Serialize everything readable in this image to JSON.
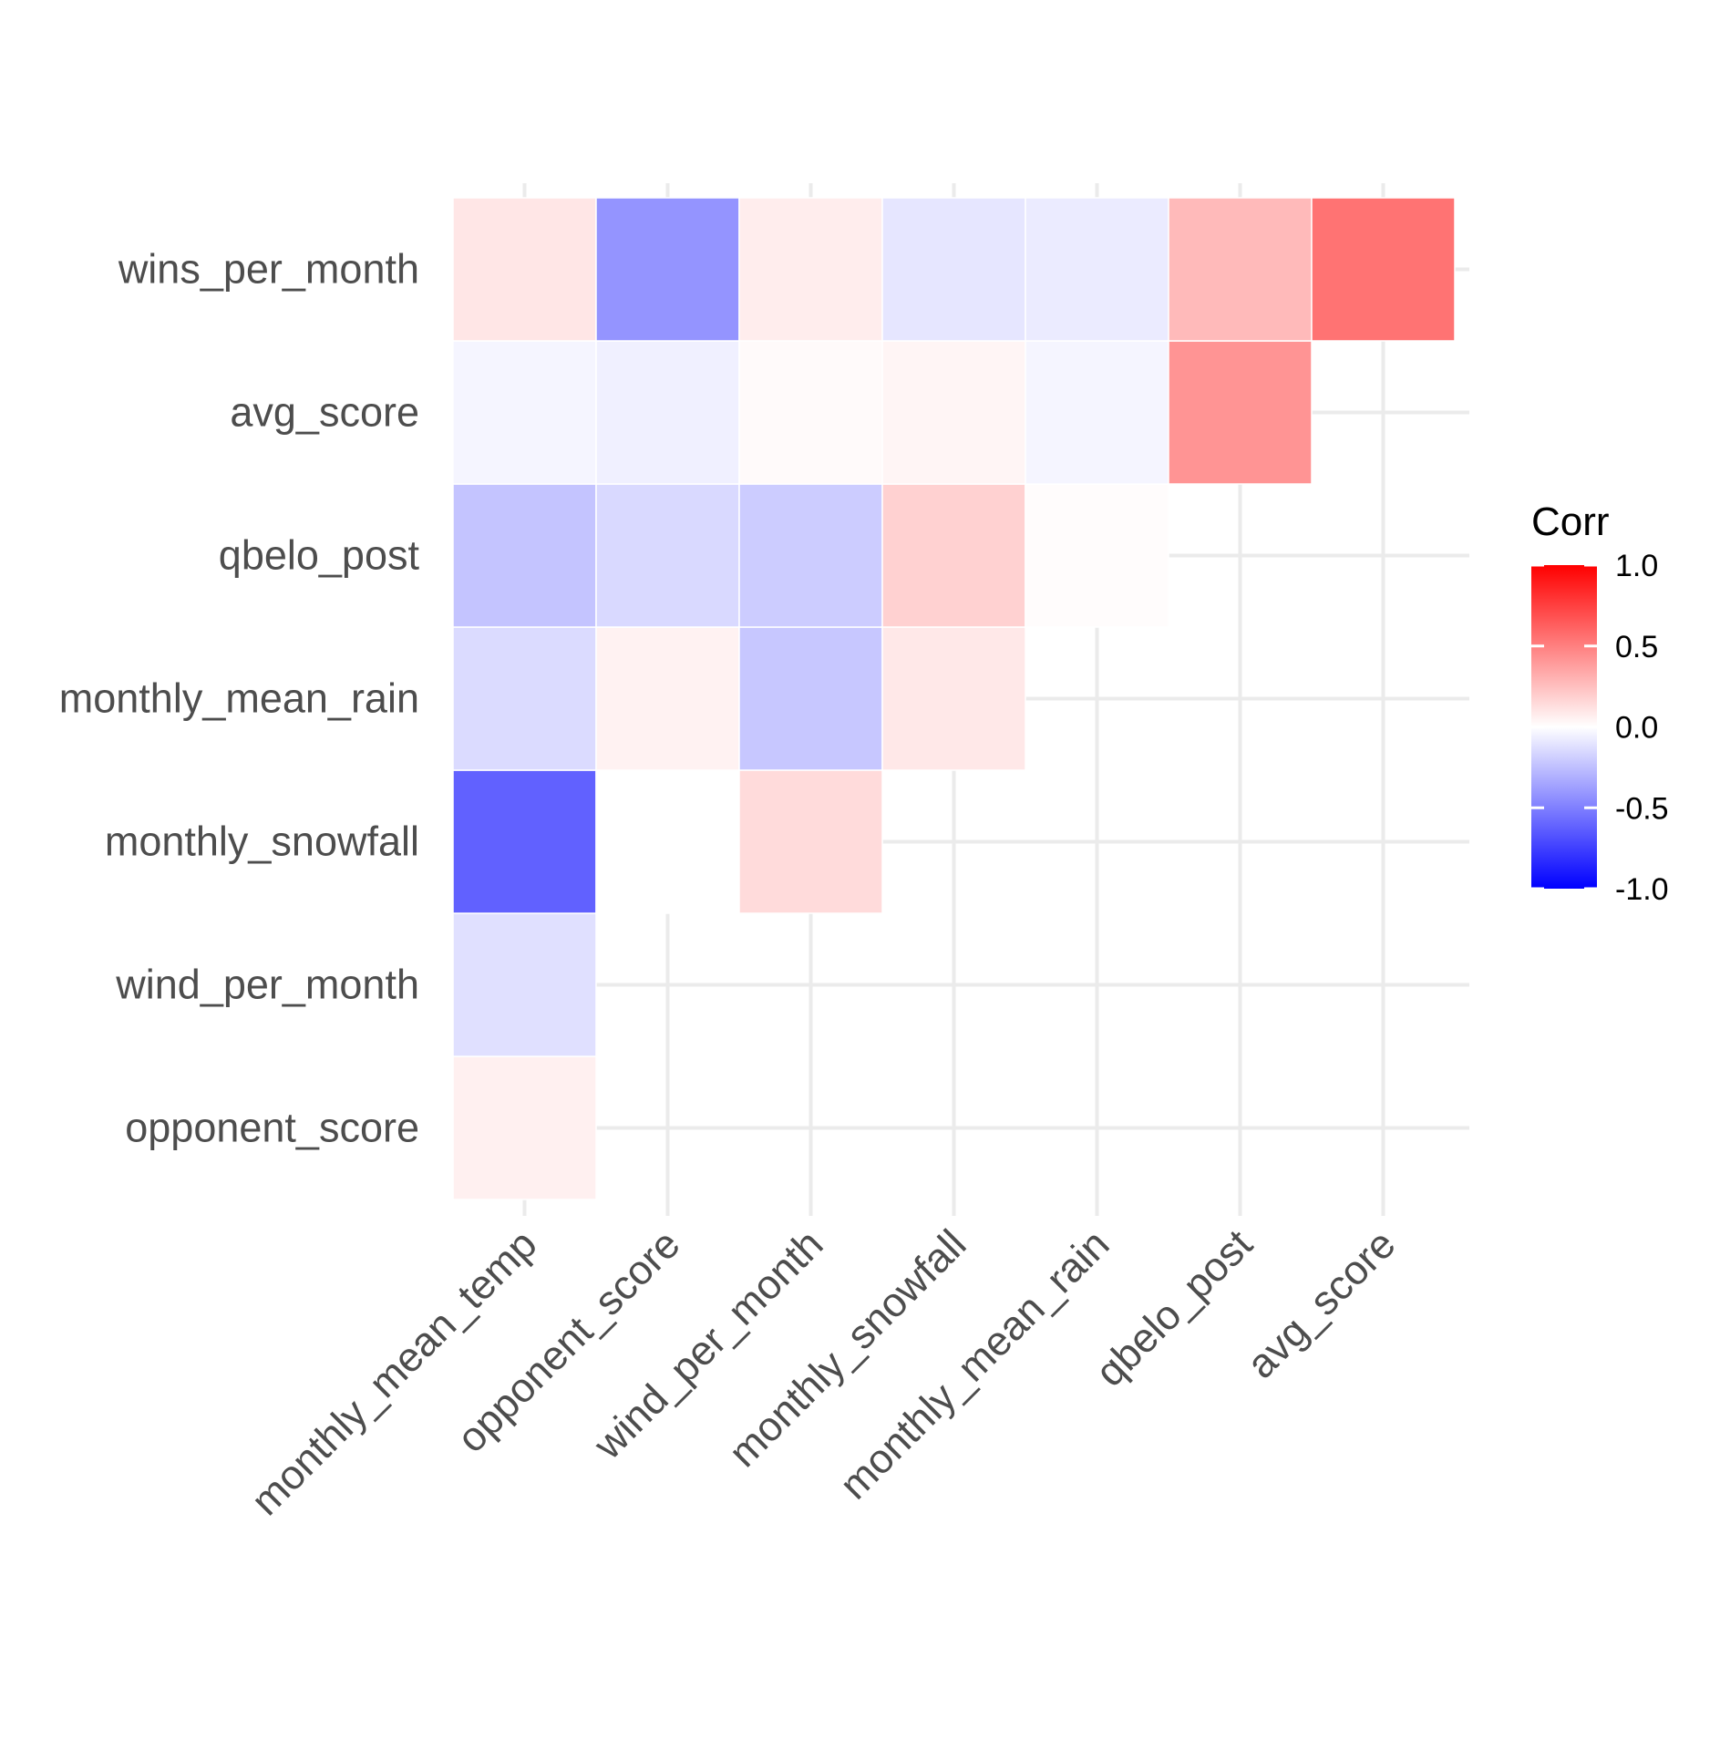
{
  "chart_data": {
    "type": "heatmap",
    "title": "",
    "xlabel": "",
    "ylabel": "",
    "x_categories": [
      "monthly_mean_temp",
      "opponent_score",
      "wind_per_month",
      "monthly_snowfall",
      "monthly_mean_rain",
      "qbelo_post",
      "avg_score"
    ],
    "y_categories": [
      "opponent_score",
      "wind_per_month",
      "monthly_snowfall",
      "monthly_mean_rain",
      "qbelo_post",
      "avg_score",
      "wins_per_month"
    ],
    "cells": [
      {
        "x": "monthly_mean_temp",
        "y": "opponent_score",
        "value": 0.06
      },
      {
        "x": "monthly_mean_temp",
        "y": "wind_per_month",
        "value": -0.12
      },
      {
        "x": "monthly_mean_temp",
        "y": "monthly_snowfall",
        "value": -0.62
      },
      {
        "x": "opponent_score",
        "y": "monthly_snowfall",
        "value": null
      },
      {
        "x": "wind_per_month",
        "y": "monthly_snowfall",
        "value": 0.14
      },
      {
        "x": "monthly_mean_temp",
        "y": "monthly_mean_rain",
        "value": -0.14
      },
      {
        "x": "opponent_score",
        "y": "monthly_mean_rain",
        "value": 0.05
      },
      {
        "x": "wind_per_month",
        "y": "monthly_mean_rain",
        "value": -0.22
      },
      {
        "x": "monthly_snowfall",
        "y": "monthly_mean_rain",
        "value": 0.09
      },
      {
        "x": "monthly_mean_temp",
        "y": "qbelo_post",
        "value": -0.23
      },
      {
        "x": "opponent_score",
        "y": "qbelo_post",
        "value": -0.15
      },
      {
        "x": "wind_per_month",
        "y": "qbelo_post",
        "value": -0.2
      },
      {
        "x": "monthly_snowfall",
        "y": "qbelo_post",
        "value": 0.18
      },
      {
        "x": "monthly_mean_rain",
        "y": "qbelo_post",
        "value": 0.01
      },
      {
        "x": "monthly_mean_temp",
        "y": "avg_score",
        "value": -0.04
      },
      {
        "x": "opponent_score",
        "y": "avg_score",
        "value": -0.06
      },
      {
        "x": "wind_per_month",
        "y": "avg_score",
        "value": 0.02
      },
      {
        "x": "monthly_snowfall",
        "y": "avg_score",
        "value": 0.04
      },
      {
        "x": "monthly_mean_rain",
        "y": "avg_score",
        "value": -0.04
      },
      {
        "x": "qbelo_post",
        "y": "avg_score",
        "value": 0.42
      },
      {
        "x": "monthly_mean_temp",
        "y": "wins_per_month",
        "value": 0.1
      },
      {
        "x": "opponent_score",
        "y": "wins_per_month",
        "value": -0.42
      },
      {
        "x": "wind_per_month",
        "y": "wins_per_month",
        "value": 0.07
      },
      {
        "x": "monthly_snowfall",
        "y": "wins_per_month",
        "value": -0.1
      },
      {
        "x": "monthly_mean_rain",
        "y": "wins_per_month",
        "value": -0.08
      },
      {
        "x": "qbelo_post",
        "y": "wins_per_month",
        "value": 0.27
      },
      {
        "x": "avg_score",
        "y": "wins_per_month",
        "value": 0.55
      }
    ],
    "legend": {
      "title": "Corr",
      "position": "right",
      "range": [
        -1,
        1
      ],
      "tick_values": [
        1.0,
        0.5,
        0.0,
        -0.5,
        -1.0
      ],
      "tick_labels": [
        "1.0",
        "0.5",
        "0.0",
        "-0.5",
        "-1.0"
      ],
      "low_color": "#0000ff",
      "mid_color": "#ffffff",
      "high_color": "#ff0000"
    },
    "grid": true,
    "grid_color": "#ebebeb"
  }
}
